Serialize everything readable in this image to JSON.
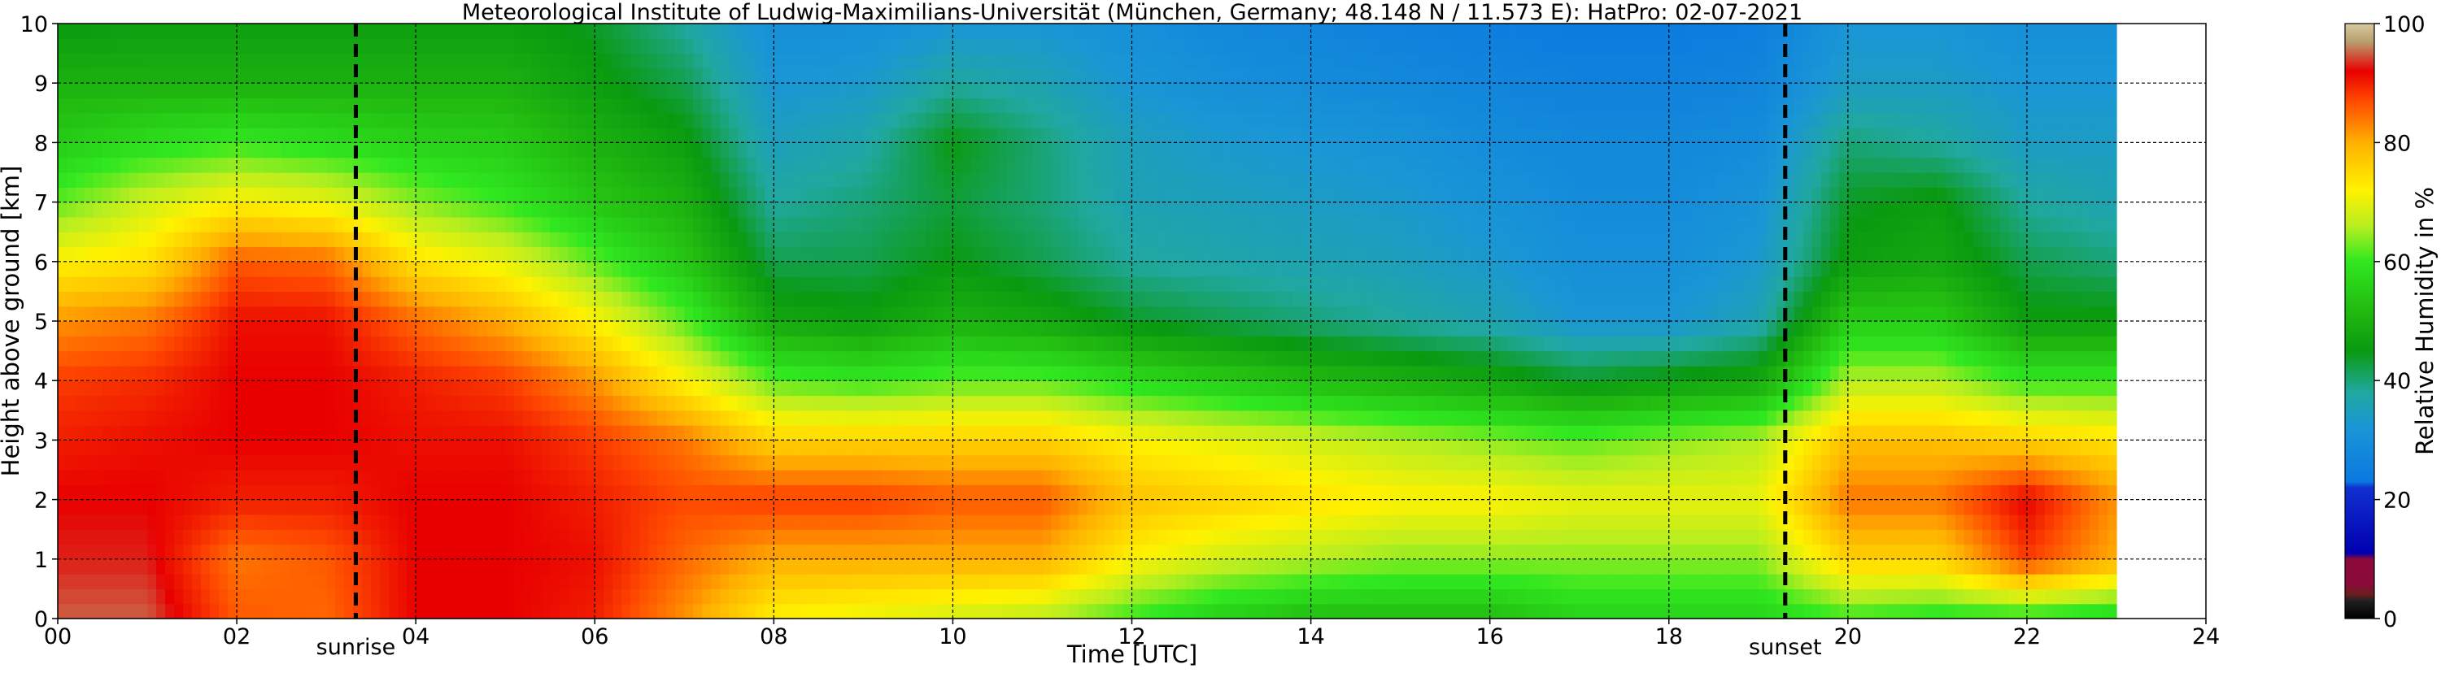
{
  "chart_data": {
    "type": "heatmap",
    "title": "Meteorological Institute of Ludwig-Maximilians-Universität (München, Germany; 48.148 N / 11.573 E):    HatPro: 02-07-2021",
    "xlabel": "Time [UTC]",
    "ylabel": "Height above ground [km]",
    "xlim": [
      0,
      24
    ],
    "ylim": [
      0,
      10
    ],
    "x_ticks": [
      "00",
      "02",
      "04",
      "06",
      "08",
      "10",
      "12",
      "14",
      "16",
      "18",
      "20",
      "22",
      "24"
    ],
    "y_ticks": [
      "0",
      "1",
      "2",
      "3",
      "4",
      "5",
      "6",
      "7",
      "8",
      "9",
      "10"
    ],
    "grid": true,
    "data_end_hour": 23.0,
    "colorbar": {
      "label": "Relative Humidity in %",
      "range": [
        0,
        100
      ],
      "ticks": [
        "0",
        "20",
        "40",
        "60",
        "80",
        "100"
      ],
      "stops": [
        {
          "v": 0,
          "c": "#000000"
        },
        {
          "v": 3,
          "c": "#202020"
        },
        {
          "v": 4,
          "c": "#6a1e1e"
        },
        {
          "v": 6,
          "c": "#8b0a3a"
        },
        {
          "v": 10,
          "c": "#8b0a3a"
        },
        {
          "v": 11,
          "c": "#0000b0"
        },
        {
          "v": 22,
          "c": "#1030d0"
        },
        {
          "v": 23,
          "c": "#0a78e0"
        },
        {
          "v": 32,
          "c": "#1a96d6"
        },
        {
          "v": 38,
          "c": "#20a8a0"
        },
        {
          "v": 45,
          "c": "#0a9a10"
        },
        {
          "v": 52,
          "c": "#22bb10"
        },
        {
          "v": 60,
          "c": "#30e820"
        },
        {
          "v": 66,
          "c": "#b8ee20"
        },
        {
          "v": 72,
          "c": "#fff200"
        },
        {
          "v": 80,
          "c": "#ffb000"
        },
        {
          "v": 87,
          "c": "#ff4a00"
        },
        {
          "v": 92,
          "c": "#e80000"
        },
        {
          "v": 97,
          "c": "#b8a070"
        },
        {
          "v": 100,
          "c": "#d8c8a0"
        }
      ]
    },
    "events": [
      {
        "label": "sunrise",
        "hour": 3.33
      },
      {
        "label": "sunset",
        "hour": 19.3
      }
    ],
    "profiles": [
      {
        "t": 0.0,
        "rh": [
          95,
          93,
          92,
          90,
          88,
          82,
          72,
          62,
          55,
          50,
          45
        ]
      },
      {
        "t": 1.0,
        "rh": [
          95,
          93,
          92,
          91,
          89,
          84,
          74,
          68,
          58,
          50,
          46
        ]
      },
      {
        "t": 2.0,
        "rh": [
          86,
          84,
          90,
          92,
          92,
          91,
          86,
          72,
          60,
          50,
          46
        ]
      },
      {
        "t": 3.0,
        "rh": [
          85,
          86,
          90,
          92,
          92,
          91,
          85,
          70,
          58,
          50,
          46
        ]
      },
      {
        "t": 4.0,
        "rh": [
          92,
          92,
          92,
          91,
          90,
          85,
          74,
          64,
          56,
          50,
          46
        ]
      },
      {
        "t": 5.0,
        "rh": [
          92,
          92,
          92,
          91,
          88,
          80,
          70,
          60,
          55,
          50,
          46
        ]
      },
      {
        "t": 6.0,
        "rh": [
          90,
          91,
          90,
          88,
          82,
          72,
          62,
          54,
          50,
          46,
          44
        ]
      },
      {
        "t": 7.0,
        "rh": [
          82,
          85,
          87,
          84,
          72,
          62,
          54,
          50,
          46,
          42,
          38
        ]
      },
      {
        "t": 8.0,
        "rh": [
          72,
          80,
          88,
          76,
          62,
          48,
          42,
          38,
          35,
          32,
          30
        ]
      },
      {
        "t": 9.0,
        "rh": [
          70,
          80,
          88,
          76,
          60,
          46,
          42,
          40,
          37,
          33,
          30
        ]
      },
      {
        "t": 10.0,
        "rh": [
          68,
          80,
          86,
          76,
          62,
          50,
          45,
          43,
          45,
          38,
          32
        ]
      },
      {
        "t": 11.0,
        "rh": [
          66,
          80,
          86,
          76,
          62,
          48,
          42,
          40,
          40,
          36,
          32
        ]
      },
      {
        "t": 12.0,
        "rh": [
          60,
          72,
          78,
          72,
          58,
          44,
          38,
          36,
          35,
          32,
          30
        ]
      },
      {
        "t": 13.0,
        "rh": [
          55,
          68,
          76,
          70,
          55,
          42,
          37,
          35,
          33,
          30,
          28
        ]
      },
      {
        "t": 14.0,
        "rh": [
          52,
          66,
          74,
          68,
          52,
          40,
          36,
          34,
          32,
          29,
          27
        ]
      },
      {
        "t": 15.0,
        "rh": [
          52,
          64,
          72,
          66,
          50,
          38,
          35,
          33,
          31,
          28,
          26
        ]
      },
      {
        "t": 16.0,
        "rh": [
          52,
          64,
          72,
          64,
          48,
          36,
          33,
          31,
          29,
          27,
          25
        ]
      },
      {
        "t": 17.0,
        "rh": [
          56,
          64,
          70,
          62,
          44,
          32,
          30,
          29,
          28,
          26,
          24
        ]
      },
      {
        "t": 18.0,
        "rh": [
          56,
          64,
          70,
          64,
          46,
          32,
          30,
          29,
          28,
          26,
          24
        ]
      },
      {
        "t": 19.0,
        "rh": [
          56,
          64,
          70,
          66,
          48,
          36,
          33,
          31,
          29,
          27,
          25
        ]
      },
      {
        "t": 20.0,
        "rh": [
          60,
          76,
          84,
          78,
          66,
          55,
          46,
          44,
          40,
          34,
          32
        ]
      },
      {
        "t": 21.0,
        "rh": [
          58,
          76,
          84,
          78,
          66,
          55,
          48,
          46,
          38,
          34,
          32
        ]
      },
      {
        "t": 22.0,
        "rh": [
          58,
          88,
          92,
          76,
          60,
          46,
          42,
          38,
          34,
          32,
          30
        ]
      },
      {
        "t": 23.0,
        "rh": [
          56,
          80,
          82,
          74,
          60,
          46,
          40,
          36,
          34,
          32,
          30
        ]
      }
    ]
  }
}
